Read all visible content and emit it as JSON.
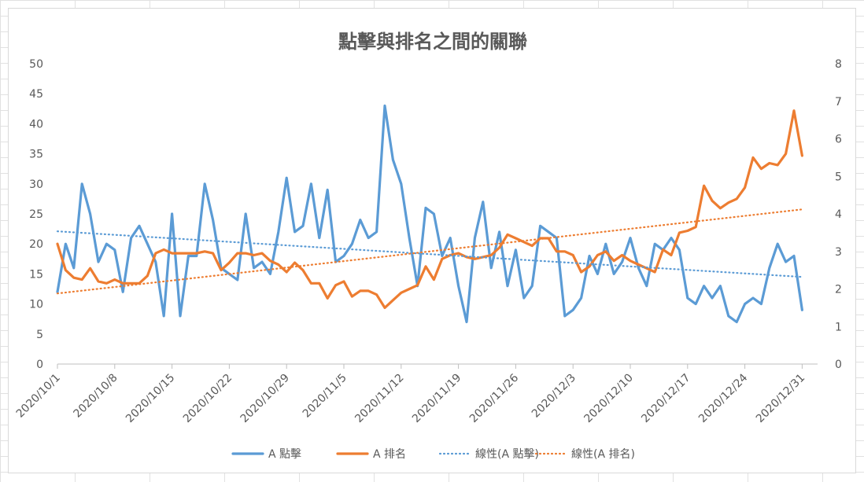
{
  "chart_data": {
    "type": "line",
    "title": "點擊與排名之間的關聯",
    "xlabel": "",
    "ylabel": "",
    "y_left_lim": [
      0,
      50
    ],
    "y_left_ticks": [
      "0",
      "5",
      "10",
      "15",
      "20",
      "25",
      "30",
      "35",
      "40",
      "45",
      "50"
    ],
    "y_right_lim": [
      0,
      8
    ],
    "y_right_ticks": [
      "0",
      "1",
      "2",
      "3",
      "4",
      "5",
      "6",
      "7",
      "8"
    ],
    "x_tick_labels": [
      "2020/10/1",
      "2020/10/8",
      "2020/10/15",
      "2020/10/22",
      "2020/10/29",
      "2020/11/5",
      "2020/11/12",
      "2020/11/19",
      "2020/11/26",
      "2020/12/3",
      "2020/12/10",
      "2020/12/17",
      "2020/12/24",
      "2020/12/31"
    ],
    "grid": false,
    "legend_position": "bottom",
    "series": [
      {
        "name": "A 點擊",
        "axis": "left",
        "color": "#5b9bd5",
        "style": "solid",
        "values": [
          12,
          20,
          16,
          30,
          25,
          17,
          20,
          19,
          12,
          21,
          23,
          20,
          17,
          8,
          25,
          8,
          18,
          18,
          30,
          24,
          16,
          15,
          14,
          25,
          16,
          17,
          15,
          22,
          31,
          22,
          23,
          30,
          21,
          29,
          17,
          18,
          20,
          24,
          21,
          22,
          43,
          34,
          30,
          21,
          13,
          26,
          25,
          18,
          21,
          13,
          7,
          21,
          27,
          16,
          22,
          13,
          19,
          11,
          13,
          23,
          22,
          21,
          8,
          9,
          11,
          18,
          15,
          20,
          15,
          17,
          21,
          16,
          13,
          20,
          19,
          21,
          19,
          11,
          10,
          13,
          11,
          13,
          8,
          7,
          10,
          11,
          10,
          16,
          20,
          17,
          18,
          9
        ]
      },
      {
        "name": "A 排名",
        "axis": "right",
        "color": "#ed7d31",
        "style": "solid",
        "values": [
          3.2,
          2.5,
          2.3,
          2.25,
          2.55,
          2.2,
          2.15,
          2.25,
          2.15,
          2.15,
          2.15,
          2.35,
          2.95,
          3.05,
          2.95,
          2.95,
          2.95,
          2.95,
          3.0,
          2.95,
          2.5,
          2.7,
          2.95,
          2.95,
          2.9,
          2.95,
          2.75,
          2.65,
          2.45,
          2.7,
          2.5,
          2.15,
          2.15,
          1.75,
          2.1,
          2.2,
          1.8,
          1.95,
          1.95,
          1.85,
          1.5,
          1.7,
          1.9,
          2.0,
          2.1,
          2.6,
          2.25,
          2.8,
          2.9,
          2.95,
          2.85,
          2.8,
          2.85,
          2.9,
          3.1,
          3.45,
          3.35,
          3.25,
          3.15,
          3.35,
          3.35,
          3.0,
          3.0,
          2.9,
          2.45,
          2.6,
          2.9,
          3.0,
          2.75,
          2.9,
          2.75,
          2.65,
          2.55,
          2.45,
          3.05,
          2.9,
          3.5,
          3.55,
          3.65,
          4.75,
          4.35,
          4.15,
          4.3,
          4.4,
          4.7,
          5.5,
          5.2,
          5.35,
          5.3,
          5.6,
          6.75,
          5.55
        ]
      },
      {
        "name": "線性(A 點擊)",
        "axis": "left",
        "color": "#5b9bd5",
        "style": "dotted",
        "trend": [
          22.1,
          14.5
        ]
      },
      {
        "name": "線性(A 排名)",
        "axis": "right",
        "color": "#ed7d31",
        "style": "dotted",
        "trend": [
          1.88,
          4.12
        ]
      }
    ]
  }
}
